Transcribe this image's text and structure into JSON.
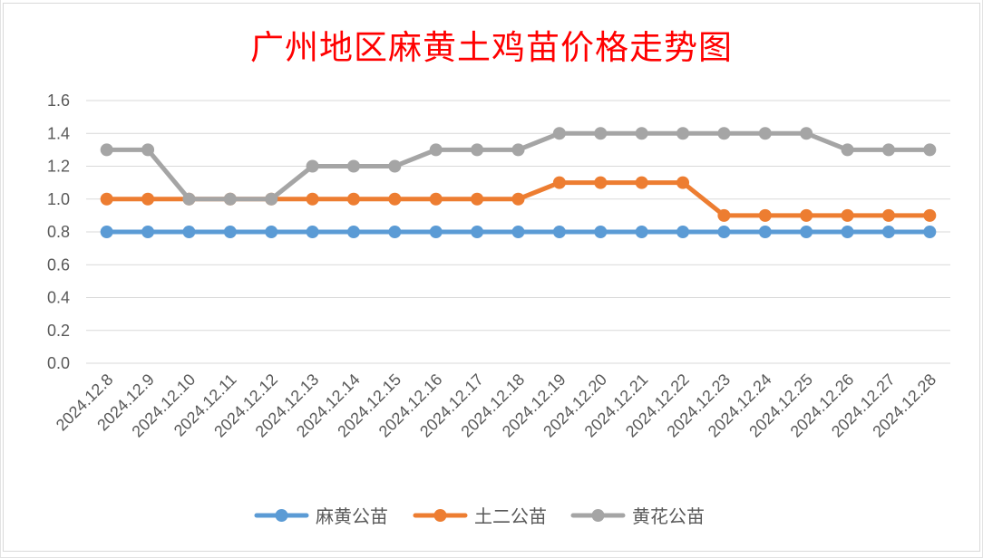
{
  "chart_data": {
    "type": "line",
    "title": "广州地区麻黄土鸡苗价格走势图",
    "xlabel": "",
    "ylabel": "",
    "categories": [
      "2024.12.8",
      "2024.12.9",
      "2024.12.10",
      "2024.12.11",
      "2024.12.12",
      "2024.12.13",
      "2024.12.14",
      "2024.12.15",
      "2024.12.16",
      "2024.12.17",
      "2024.12.18",
      "2024.12.19",
      "2024.12.20",
      "2024.12.21",
      "2024.12.22",
      "2024.12.23",
      "2024.12.24",
      "2024.12.25",
      "2024.12.26",
      "2024.12.27",
      "2024.12.28"
    ],
    "ylim": [
      0,
      1.6
    ],
    "yticks": [
      "0.0",
      "0.2",
      "0.4",
      "0.6",
      "0.8",
      "1.0",
      "1.2",
      "1.4",
      "1.6"
    ],
    "grid": true,
    "legend_position": "bottom",
    "series": [
      {
        "name": "麻黄公苗",
        "color": "#5b9bd5",
        "values": [
          0.8,
          0.8,
          0.8,
          0.8,
          0.8,
          0.8,
          0.8,
          0.8,
          0.8,
          0.8,
          0.8,
          0.8,
          0.8,
          0.8,
          0.8,
          0.8,
          0.8,
          0.8,
          0.8,
          0.8,
          0.8
        ]
      },
      {
        "name": "土二公苗",
        "color": "#ed7d31",
        "values": [
          1.0,
          1.0,
          1.0,
          1.0,
          1.0,
          1.0,
          1.0,
          1.0,
          1.0,
          1.0,
          1.0,
          1.1,
          1.1,
          1.1,
          1.1,
          0.9,
          0.9,
          0.9,
          0.9,
          0.9,
          0.9
        ]
      },
      {
        "name": "黄花公苗",
        "color": "#a5a5a5",
        "values": [
          1.3,
          1.3,
          1.0,
          1.0,
          1.0,
          1.2,
          1.2,
          1.2,
          1.3,
          1.3,
          1.3,
          1.4,
          1.4,
          1.4,
          1.4,
          1.4,
          1.4,
          1.4,
          1.3,
          1.3,
          1.3
        ]
      }
    ]
  }
}
